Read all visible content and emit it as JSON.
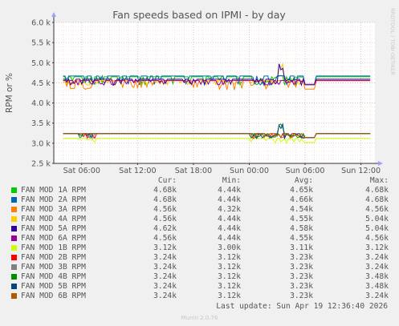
{
  "chart_data": {
    "type": "line",
    "title": "Fan speeds based on IPMI - by day",
    "ylabel": "RPM or %",
    "watermark": "RRDTOOL / TOBI OETIKER",
    "ylim": [
      2500,
      6000
    ],
    "yticks": [
      "2.5 k",
      "3.0 k",
      "3.5 k",
      "4.0 k",
      "4.5 k",
      "5.0 k",
      "5.5 k",
      "6.0 k"
    ],
    "ytick_values": [
      2500,
      3000,
      3500,
      4000,
      4500,
      5000,
      5500,
      6000
    ],
    "xticks": [
      "Sat 06:00",
      "Sat 12:00",
      "Sat 18:00",
      "Sun 00:00",
      "Sun 06:00",
      "Sun 12:00"
    ],
    "xtick_hours": [
      6,
      12,
      18,
      24,
      30,
      36
    ],
    "xlim_hours": [
      3.0,
      37.5
    ],
    "columns": [
      "Cur:",
      "Min:",
      "Avg:",
      "Max:"
    ],
    "series": [
      {
        "name": "FAN MOD 1A RPM",
        "color": "#00cc00",
        "cur": "4.68k",
        "min": "4.44k",
        "avg": "4.65k",
        "max": "4.68k",
        "base": 4650,
        "low": 4440,
        "high": 4680
      },
      {
        "name": "FAN MOD 2A RPM",
        "color": "#0066b3",
        "cur": "4.68k",
        "min": "4.44k",
        "avg": "4.66k",
        "max": "4.68k",
        "base": 4670,
        "low": 4440,
        "high": 4680
      },
      {
        "name": "FAN MOD 3A RPM",
        "color": "#ff8000",
        "cur": "4.56k",
        "min": "4.32k",
        "avg": "4.54k",
        "max": "4.56k",
        "base": 4550,
        "low": 4320,
        "high": 4560
      },
      {
        "name": "FAN MOD 4A RPM",
        "color": "#ffcc00",
        "cur": "4.56k",
        "min": "4.44k",
        "avg": "4.55k",
        "max": "5.04k",
        "base": 4560,
        "low": 4440,
        "high": 5040
      },
      {
        "name": "FAN MOD 5A RPM",
        "color": "#330099",
        "cur": "4.62k",
        "min": "4.44k",
        "avg": "4.58k",
        "max": "5.04k",
        "base": 4590,
        "low": 4440,
        "high": 5040
      },
      {
        "name": "FAN MOD 6A RPM",
        "color": "#990099",
        "cur": "4.56k",
        "min": "4.44k",
        "avg": "4.55k",
        "max": "4.56k",
        "base": 4560,
        "low": 4440,
        "high": 4560
      },
      {
        "name": "FAN MOD 1B RPM",
        "color": "#ccff00",
        "cur": "3.12k",
        "min": "3.00k",
        "avg": "3.11k",
        "max": "3.12k",
        "base": 3120,
        "low": 3000,
        "high": 3120
      },
      {
        "name": "FAN MOD 2B RPM",
        "color": "#ff0000",
        "cur": "3.24k",
        "min": "3.12k",
        "avg": "3.23k",
        "max": "3.24k",
        "base": 3240,
        "low": 3120,
        "high": 3240
      },
      {
        "name": "FAN MOD 3B RPM",
        "color": "#808080",
        "cur": "3.24k",
        "min": "3.12k",
        "avg": "3.23k",
        "max": "3.24k",
        "base": 3240,
        "low": 3120,
        "high": 3240
      },
      {
        "name": "FAN MOD 4B RPM",
        "color": "#008f00",
        "cur": "3.24k",
        "min": "3.12k",
        "avg": "3.23k",
        "max": "3.48k",
        "base": 3240,
        "low": 3120,
        "high": 3480
      },
      {
        "name": "FAN MOD 5B RPM",
        "color": "#00487d",
        "cur": "3.24k",
        "min": "3.12k",
        "avg": "3.23k",
        "max": "3.48k",
        "base": 3240,
        "low": 3120,
        "high": 3480
      },
      {
        "name": "FAN MOD 6B RPM",
        "color": "#b35a00",
        "cur": "3.24k",
        "min": "3.12k",
        "avg": "3.23k",
        "max": "3.24k",
        "base": 3240,
        "low": 3120,
        "high": 3240
      }
    ],
    "grid": true,
    "legend_position": "bottom"
  },
  "footer": {
    "last_update": "Last update: Sun Apr 19 12:36:40 2026",
    "version": "Munin 2.0.76"
  }
}
